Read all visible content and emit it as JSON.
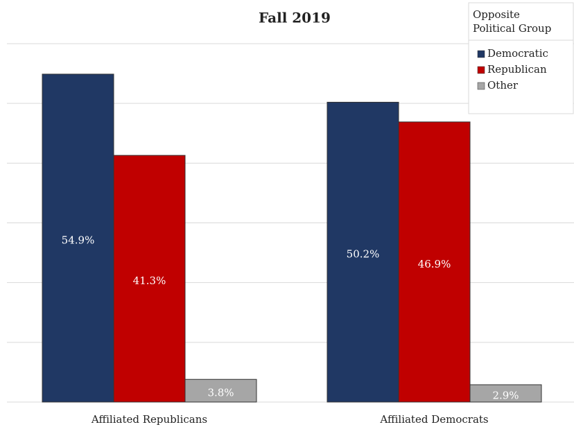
{
  "chart_data": {
    "type": "bar",
    "title": "Fall 2019",
    "categories": [
      "Affiliated Republicans",
      "Affiliated Democrats"
    ],
    "legend_title": [
      "Opposite",
      "Political Group"
    ],
    "series": [
      {
        "name": "Democratic",
        "color": "#203864",
        "values": [
          54.9,
          50.2
        ],
        "value_labels": [
          "54.9%",
          "50.2%"
        ]
      },
      {
        "name": "Republican",
        "color": "#c00000",
        "values": [
          41.3,
          46.9
        ],
        "value_labels": [
          "41.3%",
          "46.9%"
        ]
      },
      {
        "name": "Other",
        "color": "#a6a6a6",
        "values": [
          3.8,
          2.9
        ],
        "value_labels": [
          "3.8%",
          "2.9%"
        ]
      }
    ],
    "ylim": [
      0,
      60
    ],
    "yticks": [
      0,
      10,
      20,
      30,
      40,
      50,
      60
    ],
    "grid": true,
    "legend": "upper right"
  }
}
